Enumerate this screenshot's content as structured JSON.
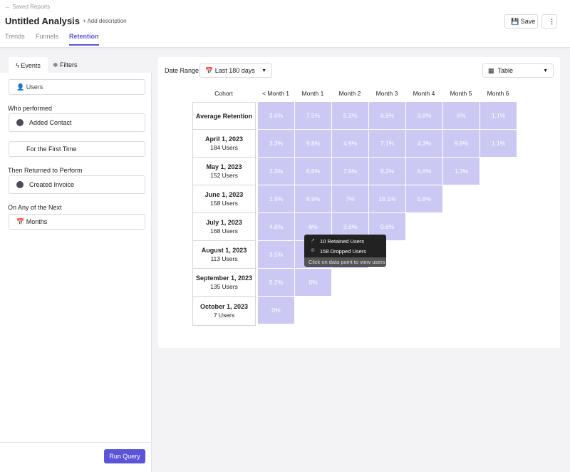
{
  "header": {
    "breadcrumb": "Saved Reports",
    "title": "Untitled Analysis",
    "add_description": "Add description",
    "tabs": [
      "Trends",
      "Funnels",
      "Retention"
    ],
    "save": "Save"
  },
  "sidebar": {
    "tabs": [
      "Events",
      "Filters"
    ],
    "measure": "Users",
    "sections": [
      {
        "heading": "Who performed",
        "fields": [
          "Added Contact",
          "For the First Time"
        ]
      },
      {
        "heading": "Then Returned to Perform",
        "fields": [
          "Created Invoice"
        ]
      },
      {
        "heading": "On Any of the Next",
        "fields": [
          "Months"
        ]
      }
    ],
    "run_query": "Run Query"
  },
  "controls": {
    "date_range_label": "Date Range",
    "date_range": "Last 180 days",
    "view": "Table"
  },
  "table": {
    "header": [
      "Cohort",
      "< Month 1",
      "Month 1",
      "Month 2",
      "Month 3",
      "Month 4",
      "Month 5",
      "Month 6"
    ],
    "rows": [
      {
        "cohort": "Average Retention",
        "cells": [
          "3.6%",
          "7.5%",
          "5.2%",
          "6.6%",
          "3.8%",
          "6%",
          "1.1%"
        ]
      },
      {
        "cohort": "April 1, 2023",
        "users": "184 Users",
        "cells": [
          "3.3%",
          "9.8%",
          "4.9%",
          "7.1%",
          "4.3%",
          "9.8%",
          "1.1%"
        ]
      },
      {
        "cohort": "May 1, 2023",
        "users": "152 Users",
        "cells": [
          "3.3%",
          "6.6%",
          "7.9%",
          "9.2%",
          "6.6%",
          "1.3%"
        ]
      },
      {
        "cohort": "June 1, 2023",
        "users": "158 Users",
        "cells": [
          "1.9%",
          "8.9%",
          "7%",
          "10.1%",
          "0.6%"
        ]
      },
      {
        "cohort": "July 1, 2023",
        "users": "168 Users",
        "cells": [
          "4.8%",
          "6%",
          "3.6%",
          "0.6%"
        ]
      },
      {
        "cohort": "August 1, 2023",
        "users": "113 Users",
        "cells": [
          "3.5%"
        ]
      },
      {
        "cohort": "September 1, 2023",
        "users": "135 Users",
        "cells": [
          "5.2%",
          "0%"
        ]
      },
      {
        "cohort": "October 1, 2023",
        "users": "7 Users",
        "cells": [
          "0%"
        ]
      }
    ]
  },
  "tooltip": {
    "retained": "10 Retained Users",
    "dropped": "158 Dropped Users",
    "hint": "Click on data point to view users"
  }
}
